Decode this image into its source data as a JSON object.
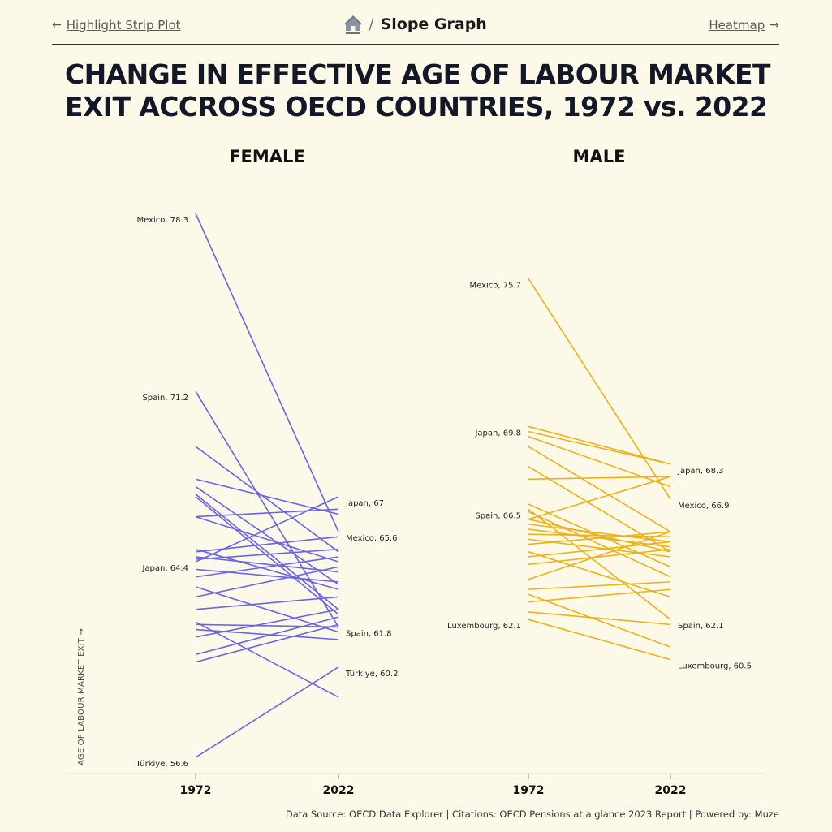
{
  "nav": {
    "prev_label": "Highlight Strip Plot",
    "prev_arrow": "←",
    "next_label": "Heatmap",
    "next_arrow": "→",
    "separator": "/",
    "current": "Slope Graph"
  },
  "title": "CHANGE IN EFFECTIVE AGE OF LABOUR MARKET EXIT ACCROSS OECD COUNTRIES, 1972 vs. 2022",
  "source": "Data Source: OECD Data Explorer | Citations: OECD Pensions at a glance 2023 Report | Powered by: Muze",
  "colors": {
    "female": "#6a66e3",
    "male": "#ebb219",
    "background": "#fdf9e9"
  },
  "chart_data": {
    "type": "line",
    "subtype": "slope",
    "ylabel": "AGE OF LABOUR MARKET EXIT",
    "ylabel_arrow": "→",
    "x": [
      "1972",
      "2022"
    ],
    "grid": false,
    "panels": [
      {
        "name": "FEMALE",
        "ylim": [
          56.6,
          78.3
        ],
        "series": [
          {
            "values": [
              78.3,
              65.6
            ],
            "label_1972": "Mexico, 78.3",
            "label_2022": "Mexico, 65.6"
          },
          {
            "values": [
              71.2,
              61.8
            ],
            "label_1972": "Spain, 71.2",
            "label_2022": "Spain, 61.8"
          },
          {
            "values": [
              64.4,
              67.0
            ],
            "label_1972": "Japan, 64.4",
            "label_2022": "Japan, 67"
          },
          {
            "values": [
              56.6,
              60.2
            ],
            "label_1972": "Türkiye, 56.6",
            "label_2022": "Türkiye, 60.2"
          },
          {
            "values": [
              69.0,
              64.8
            ]
          },
          {
            "values": [
              67.7,
              66.3
            ]
          },
          {
            "values": [
              67.4,
              63.5
            ]
          },
          {
            "values": [
              67.1,
              62.5
            ]
          },
          {
            "values": [
              67.0,
              62.3
            ]
          },
          {
            "values": [
              66.2,
              64.4
            ]
          },
          {
            "values": [
              66.2,
              66.5
            ]
          },
          {
            "values": [
              64.9,
              63.3
            ]
          },
          {
            "values": [
              64.8,
              65.4
            ]
          },
          {
            "values": [
              64.6,
              64.0
            ]
          },
          {
            "values": [
              64.5,
              64.9
            ]
          },
          {
            "values": [
              64.1,
              63.6
            ]
          },
          {
            "values": [
              63.8,
              64.6
            ]
          },
          {
            "values": [
              63.4,
              61.6
            ]
          },
          {
            "values": [
              63.0,
              64.2
            ]
          },
          {
            "values": [
              62.5,
              63.0
            ]
          },
          {
            "values": [
              62.0,
              59.0
            ]
          },
          {
            "values": [
              61.9,
              61.8
            ]
          },
          {
            "values": [
              61.7,
              61.3
            ]
          },
          {
            "values": [
              61.4,
              62.5
            ]
          },
          {
            "values": [
              60.7,
              62.2
            ]
          },
          {
            "values": [
              60.4,
              61.9
            ]
          }
        ]
      },
      {
        "name": "MALE",
        "ylim": [
          56.6,
          78.3
        ],
        "series": [
          {
            "values": [
              75.7,
              66.9
            ],
            "label_1972": "Mexico, 75.7",
            "label_2022": "Mexico, 66.9"
          },
          {
            "values": [
              69.8,
              68.3
            ],
            "label_1972": "Japan, 69.8",
            "label_2022": "Japan, 68.3"
          },
          {
            "values": [
              66.5,
              62.1
            ],
            "label_1972": "Spain, 66.5",
            "label_2022": "Spain, 62.1"
          },
          {
            "values": [
              62.1,
              60.5
            ],
            "label_1972": "Luxembourg, 62.1",
            "label_2022": "Luxembourg, 60.5"
          },
          {
            "values": [
              69.6,
              68.3
            ]
          },
          {
            "values": [
              69.4,
              67.4
            ]
          },
          {
            "values": [
              69.0,
              65.6
            ]
          },
          {
            "values": [
              68.2,
              64.8
            ]
          },
          {
            "values": [
              67.7,
              67.8
            ]
          },
          {
            "values": [
              66.7,
              64.2
            ]
          },
          {
            "values": [
              66.4,
              63.8
            ]
          },
          {
            "values": [
              66.1,
              67.8
            ]
          },
          {
            "values": [
              66.1,
              64.8
            ]
          },
          {
            "values": [
              65.9,
              65.2
            ]
          },
          {
            "values": [
              65.7,
              65.0
            ]
          },
          {
            "values": [
              65.5,
              65.4
            ]
          },
          {
            "values": [
              65.3,
              64.6
            ]
          },
          {
            "values": [
              65.1,
              65.6
            ]
          },
          {
            "values": [
              64.8,
              63.0
            ]
          },
          {
            "values": [
              64.6,
              65.2
            ]
          },
          {
            "values": [
              64.3,
              64.9
            ]
          },
          {
            "values": [
              63.7,
              65.6
            ]
          },
          {
            "values": [
              63.3,
              63.6
            ]
          },
          {
            "values": [
              63.1,
              61.0
            ]
          },
          {
            "values": [
              62.8,
              63.3
            ]
          },
          {
            "values": [
              62.4,
              61.9
            ]
          }
        ]
      }
    ]
  }
}
